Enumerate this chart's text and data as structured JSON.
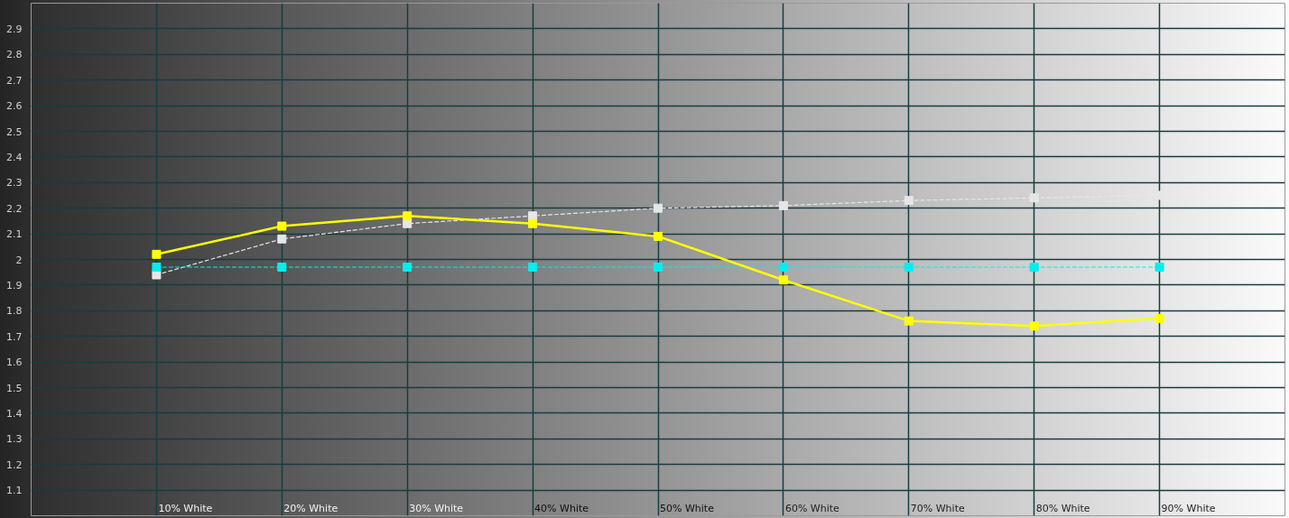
{
  "chart_data": {
    "type": "line",
    "categories": [
      "10% White",
      "20% White",
      "30% White",
      "40% White",
      "50% White",
      "60% White",
      "70% White",
      "80% White",
      "90% White"
    ],
    "series": [
      {
        "color": "#e6e6e6",
        "line_style": "dashed",
        "values": [
          1.94,
          2.08,
          2.14,
          2.17,
          2.2,
          2.21,
          2.23,
          2.24,
          2.25
        ]
      },
      {
        "color": "#00eef0",
        "line_style": "dashed",
        "values": [
          1.97,
          1.97,
          1.97,
          1.97,
          1.97,
          1.97,
          1.97,
          1.97,
          1.97
        ]
      },
      {
        "color": "#ffff00",
        "line_style": "solid",
        "values": [
          2.02,
          2.13,
          2.17,
          2.14,
          2.09,
          1.92,
          1.76,
          1.74,
          1.77
        ]
      }
    ],
    "ylim": [
      1,
      3
    ],
    "yticks": [
      1.1,
      1.2,
      1.3,
      1.4,
      1.5,
      1.6,
      1.7,
      1.8,
      1.9,
      2,
      2.1,
      2.2,
      2.3,
      2.4,
      2.5,
      2.6,
      2.7,
      2.8,
      2.9
    ],
    "grid": true,
    "marker": "square"
  }
}
